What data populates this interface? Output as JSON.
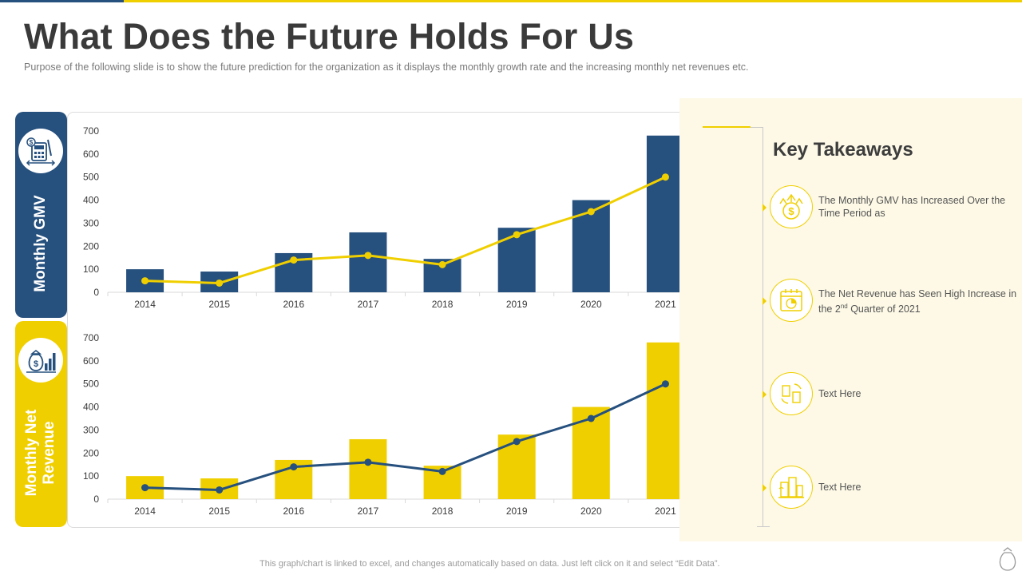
{
  "title": "What Does the Future Holds For Us",
  "subtitle": "Purpose of the following  slide is to show the future prediction for the organization  as it displays the monthly growth  rate and the increasing monthly net revenues  etc.",
  "footer": "This graph/chart is linked to excel,  and changes automatically based on data. Just left click on it and select “Edit Data”.",
  "colors": {
    "blue": "#26507e",
    "yellow": "#f0cf00"
  },
  "chart_data": [
    {
      "type": "bar",
      "title": "Monthly GMV",
      "categories": [
        "2014",
        "2015",
        "2016",
        "2017",
        "2018",
        "2019",
        "2020",
        "2021"
      ],
      "yticks": [
        "0",
        "100",
        "200",
        "300",
        "400",
        "500",
        "600",
        "700"
      ],
      "ylim": [
        0,
        700
      ],
      "series": [
        {
          "name": "Bars",
          "kind": "bar",
          "color": "#26507e",
          "values": [
            100,
            90,
            170,
            260,
            145,
            280,
            400,
            680
          ]
        },
        {
          "name": "Line",
          "kind": "line",
          "color": "#f0cf00",
          "values": [
            50,
            40,
            140,
            160,
            120,
            250,
            350,
            500
          ]
        }
      ]
    },
    {
      "type": "bar",
      "title": "Monthly Net Revenue",
      "categories": [
        "2014",
        "2015",
        "2016",
        "2017",
        "2018",
        "2019",
        "2020",
        "2021"
      ],
      "yticks": [
        "0",
        "100",
        "200",
        "300",
        "400",
        "500",
        "600",
        "700"
      ],
      "ylim": [
        0,
        700
      ],
      "series": [
        {
          "name": "Bars",
          "kind": "bar",
          "color": "#f0cf00",
          "values": [
            100,
            90,
            170,
            260,
            145,
            280,
            400,
            680
          ]
        },
        {
          "name": "Line",
          "kind": "line",
          "color": "#26507e",
          "values": [
            50,
            40,
            140,
            160,
            120,
            250,
            350,
            500
          ]
        }
      ]
    }
  ],
  "side_labels": {
    "gmv": "Monthly GMV",
    "revenue_line1": "Monthly Net",
    "revenue_line2": "Revenue"
  },
  "takeaways": {
    "title": "Key Takeaways",
    "items": [
      {
        "icon": "dollar-growth-icon",
        "text": "The Monthly GMV has Increased Over the Time Period as"
      },
      {
        "icon": "calendar-chart-icon",
        "text_before": "The Net Revenue  has Seen High Increase in the 2",
        "superscript": "nd",
        "text_after": " Quarter of 2021"
      },
      {
        "icon": "building-cycle-icon",
        "text": "Text Here"
      },
      {
        "icon": "city-phone-icon",
        "text": "Text Here"
      }
    ]
  }
}
